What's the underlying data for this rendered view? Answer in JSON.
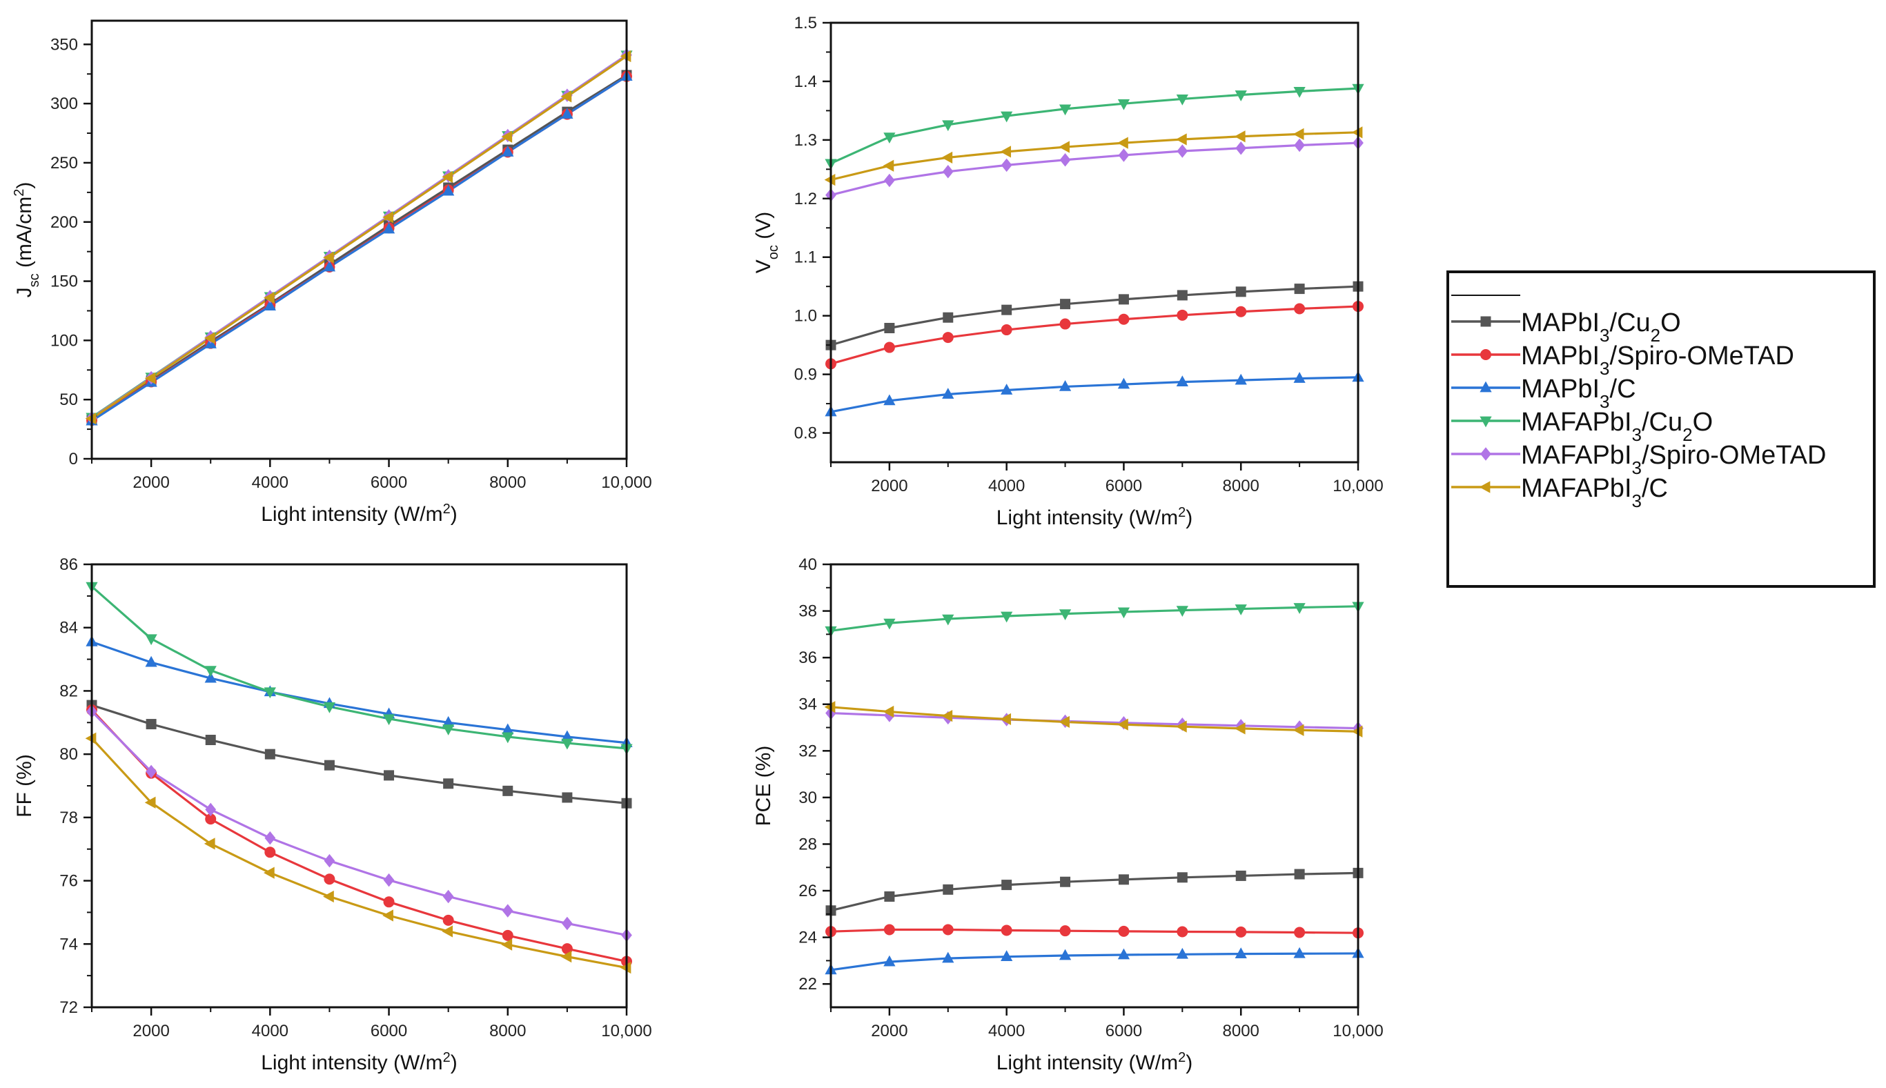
{
  "colors": {
    "MAPbI3/Cu2O": "#555555",
    "MAPbI3/Spiro-OMeTAD": "#e8373c",
    "MAPbI3/C": "#2a74d6",
    "MAFAPbI3/Cu2O": "#3cb574",
    "MAFAPbI3/Spiro-OMeTAD": "#b074e6",
    "MAFAPbI3/C": "#c99a15"
  },
  "legend": {
    "entries": [
      {
        "key": "MAPbI3/Cu2O",
        "base": "MAPbI",
        "sub": "3",
        "mid": "/Cu",
        "sub2": "2",
        "tail": "O",
        "marker": "square"
      },
      {
        "key": "MAPbI3/Spiro-OMeTAD",
        "base": "MAPbI",
        "sub": "3",
        "mid": "/Spiro-OMeTAD",
        "sub2": "",
        "tail": "",
        "marker": "circle"
      },
      {
        "key": "MAPbI3/C",
        "base": "MAPbI",
        "sub": "3",
        "mid": "/C",
        "sub2": "",
        "tail": "",
        "marker": "triangle-up"
      },
      {
        "key": "MAFAPbI3/Cu2O",
        "base": "MAFAPbI",
        "sub": "3",
        "mid": "/Cu",
        "sub2": "2",
        "tail": "O",
        "marker": "triangle-down"
      },
      {
        "key": "MAFAPbI3/Spiro-OMeTAD",
        "base": "MAFAPbI",
        "sub": "3",
        "mid": "/Spiro-OMeTAD",
        "sub2": "",
        "tail": "",
        "marker": "diamond"
      },
      {
        "key": "MAFAPbI3/C",
        "base": "MAFAPbI",
        "sub": "3",
        "mid": "/C",
        "sub2": "",
        "tail": "",
        "marker": "triangle-left"
      }
    ]
  },
  "chart_data": [
    {
      "id": "jsc",
      "type": "line",
      "xlabel": "Light intensity (W/m2)",
      "xlabel_parts": {
        "main": "Light intensity (W/m",
        "sup": "2",
        "end": ")"
      },
      "ylabel": "Jsc (mA/cm2)",
      "ylabel_parts": {
        "main": "J",
        "sub": "sc",
        "mid": " (mA/cm",
        "sup": "2",
        "end": ")"
      },
      "xlim": [
        1000,
        10000
      ],
      "ylim": [
        0,
        370
      ],
      "xticks": [
        2000,
        4000,
        6000,
        8000,
        10000
      ],
      "xtick_labels": [
        "2000",
        "4000",
        "6000",
        "8000",
        "10,000"
      ],
      "yticks": [
        0,
        50,
        100,
        150,
        200,
        250,
        300,
        350
      ],
      "ytick_labels": [
        "0",
        "50",
        "100",
        "150",
        "200",
        "250",
        "300",
        "350"
      ],
      "x": [
        1000,
        2000,
        3000,
        4000,
        5000,
        6000,
        7000,
        8000,
        9000,
        10000
      ],
      "series": [
        {
          "name": "MAPbI3/Cu2O",
          "marker": "square",
          "values": [
            33,
            66,
            99,
            131,
            164,
            197,
            229,
            261,
            293,
            324
          ]
        },
        {
          "name": "MAPbI3/Spiro-OMeTAD",
          "marker": "circle",
          "values": [
            32.5,
            65,
            97.5,
            130,
            162,
            195,
            227,
            259,
            291,
            323
          ]
        },
        {
          "name": "MAPbI3/C",
          "marker": "triangle-up",
          "values": [
            32,
            64.5,
            97,
            129,
            162,
            194,
            226,
            259,
            291,
            323
          ]
        },
        {
          "name": "MAFAPbI3/Cu2O",
          "marker": "triangle-down",
          "values": [
            35,
            69,
            103,
            137,
            171,
            205,
            239,
            273,
            307,
            341
          ]
        },
        {
          "name": "MAFAPbI3/Spiro-OMeTAD",
          "marker": "diamond",
          "values": [
            34.5,
            68.5,
            103,
            137,
            171,
            205,
            239,
            273,
            307,
            341
          ]
        },
        {
          "name": "MAFAPbI3/C",
          "marker": "triangle-left",
          "values": [
            34,
            68,
            102,
            136,
            170,
            204,
            238,
            272,
            306,
            340
          ]
        }
      ]
    },
    {
      "id": "voc",
      "type": "line",
      "xlabel": "Light intensity (W/m2)",
      "xlabel_parts": {
        "main": "Light intensity (W/m",
        "sup": "2",
        "end": ")"
      },
      "ylabel": "Voc (V)",
      "ylabel_parts": {
        "main": "V",
        "sub": "oc",
        "mid": " (V)",
        "sup": "",
        "end": ""
      },
      "xlim": [
        1000,
        10000
      ],
      "ylim": [
        0.75,
        1.5
      ],
      "xticks": [
        2000,
        4000,
        6000,
        8000,
        10000
      ],
      "xtick_labels": [
        "2000",
        "4000",
        "6000",
        "8000",
        "10,000"
      ],
      "yticks": [
        0.8,
        0.9,
        1.0,
        1.1,
        1.2,
        1.3,
        1.4,
        1.5
      ],
      "ytick_labels": [
        "0.8",
        "0.9",
        "1.0",
        "1.1",
        "1.2",
        "1.3",
        "1.4",
        "1.5"
      ],
      "x": [
        1000,
        2000,
        3000,
        4000,
        5000,
        6000,
        7000,
        8000,
        9000,
        10000
      ],
      "series": [
        {
          "name": "MAPbI3/Cu2O",
          "marker": "square",
          "values": [
            0.95,
            0.979,
            0.997,
            1.01,
            1.02,
            1.028,
            1.035,
            1.041,
            1.046,
            1.05
          ]
        },
        {
          "name": "MAPbI3/Spiro-OMeTAD",
          "marker": "circle",
          "values": [
            0.918,
            0.946,
            0.963,
            0.976,
            0.986,
            0.994,
            1.001,
            1.007,
            1.012,
            1.016
          ]
        },
        {
          "name": "MAPbI3/C",
          "marker": "triangle-up",
          "values": [
            0.836,
            0.855,
            0.866,
            0.873,
            0.879,
            0.883,
            0.887,
            0.89,
            0.893,
            0.895
          ]
        },
        {
          "name": "MAFAPbI3/Cu2O",
          "marker": "triangle-down",
          "values": [
            1.26,
            1.305,
            1.326,
            1.341,
            1.353,
            1.362,
            1.37,
            1.377,
            1.383,
            1.388
          ]
        },
        {
          "name": "MAFAPbI3/Spiro-OMeTAD",
          "marker": "diamond",
          "values": [
            1.206,
            1.231,
            1.246,
            1.257,
            1.266,
            1.274,
            1.281,
            1.286,
            1.291,
            1.295
          ]
        },
        {
          "name": "MAFAPbI3/C",
          "marker": "triangle-left",
          "values": [
            1.232,
            1.256,
            1.27,
            1.28,
            1.288,
            1.295,
            1.301,
            1.306,
            1.31,
            1.313
          ]
        }
      ]
    },
    {
      "id": "ff",
      "type": "line",
      "xlabel": "Light intensity (W/m2)",
      "xlabel_parts": {
        "main": "Light intensity (W/m",
        "sup": "2",
        "end": ")"
      },
      "ylabel": "FF (%)",
      "ylabel_parts": {
        "main": "FF (%)",
        "sub": "",
        "mid": "",
        "sup": "",
        "end": ""
      },
      "xlim": [
        1000,
        10000
      ],
      "ylim": [
        72,
        86
      ],
      "xticks": [
        2000,
        4000,
        6000,
        8000,
        10000
      ],
      "xtick_labels": [
        "2000",
        "4000",
        "6000",
        "8000",
        "10,000"
      ],
      "yticks": [
        72,
        74,
        76,
        78,
        80,
        82,
        84,
        86
      ],
      "ytick_labels": [
        "72",
        "74",
        "76",
        "78",
        "80",
        "82",
        "84",
        "86"
      ],
      "x": [
        1000,
        2000,
        3000,
        4000,
        5000,
        6000,
        7000,
        8000,
        9000,
        10000
      ],
      "series": [
        {
          "name": "MAPbI3/Cu2O",
          "marker": "square",
          "values": [
            81.55,
            80.95,
            80.45,
            80.0,
            79.65,
            79.33,
            79.07,
            78.84,
            78.63,
            78.45
          ]
        },
        {
          "name": "MAPbI3/Spiro-OMeTAD",
          "marker": "circle",
          "values": [
            81.4,
            79.4,
            77.95,
            76.9,
            76.05,
            75.33,
            74.75,
            74.27,
            73.85,
            73.45
          ]
        },
        {
          "name": "MAPbI3/C",
          "marker": "triangle-up",
          "values": [
            83.55,
            82.9,
            82.4,
            81.97,
            81.6,
            81.27,
            81.0,
            80.77,
            80.55,
            80.36
          ]
        },
        {
          "name": "MAFAPbI3/Cu2O",
          "marker": "triangle-down",
          "values": [
            85.3,
            83.65,
            82.65,
            81.97,
            81.5,
            81.12,
            80.8,
            80.55,
            80.35,
            80.18
          ]
        },
        {
          "name": "MAFAPbI3/Spiro-OMeTAD",
          "marker": "diamond",
          "values": [
            81.35,
            79.45,
            78.25,
            77.35,
            76.63,
            76.02,
            75.5,
            75.05,
            74.65,
            74.28
          ]
        },
        {
          "name": "MAFAPbI3/C",
          "marker": "triangle-left",
          "values": [
            80.5,
            78.47,
            77.17,
            76.25,
            75.5,
            74.9,
            74.4,
            73.98,
            73.6,
            73.25
          ]
        }
      ]
    },
    {
      "id": "pce",
      "type": "line",
      "xlabel": "Light intensity (W/m2)",
      "xlabel_parts": {
        "main": "Light intensity (W/m",
        "sup": "2",
        "end": ")"
      },
      "ylabel": "PCE (%)",
      "ylabel_parts": {
        "main": "PCE (%)",
        "sub": "",
        "mid": "",
        "sup": "",
        "end": ""
      },
      "xlim": [
        1000,
        10000
      ],
      "ylim": [
        21,
        40
      ],
      "xticks": [
        2000,
        4000,
        6000,
        8000,
        10000
      ],
      "xtick_labels": [
        "2000",
        "4000",
        "6000",
        "8000",
        "10,000"
      ],
      "yticks": [
        22,
        24,
        26,
        28,
        30,
        32,
        34,
        36,
        38,
        40
      ],
      "ytick_labels": [
        "22",
        "24",
        "26",
        "28",
        "30",
        "32",
        "34",
        "36",
        "38",
        "40"
      ],
      "x": [
        1000,
        2000,
        3000,
        4000,
        5000,
        6000,
        7000,
        8000,
        9000,
        10000
      ],
      "series": [
        {
          "name": "MAPbI3/Cu2O",
          "marker": "square",
          "values": [
            25.15,
            25.75,
            26.05,
            26.25,
            26.38,
            26.48,
            26.57,
            26.64,
            26.71,
            26.76
          ]
        },
        {
          "name": "MAPbI3/Spiro-OMeTAD",
          "marker": "circle",
          "values": [
            24.25,
            24.33,
            24.33,
            24.3,
            24.28,
            24.26,
            24.24,
            24.23,
            24.21,
            24.19
          ]
        },
        {
          "name": "MAPbI3/C",
          "marker": "triangle-up",
          "values": [
            22.6,
            22.95,
            23.1,
            23.17,
            23.22,
            23.25,
            23.27,
            23.29,
            23.3,
            23.31
          ]
        },
        {
          "name": "MAFAPbI3/Cu2O",
          "marker": "triangle-down",
          "values": [
            37.15,
            37.48,
            37.66,
            37.78,
            37.88,
            37.96,
            38.03,
            38.09,
            38.15,
            38.2
          ]
        },
        {
          "name": "MAFAPbI3/Spiro-OMeTAD",
          "marker": "diamond",
          "values": [
            33.62,
            33.52,
            33.42,
            33.34,
            33.27,
            33.2,
            33.14,
            33.08,
            33.02,
            32.97
          ]
        },
        {
          "name": "MAFAPbI3/C",
          "marker": "triangle-left",
          "values": [
            33.88,
            33.68,
            33.5,
            33.36,
            33.24,
            33.13,
            33.04,
            32.96,
            32.89,
            32.83
          ]
        }
      ]
    }
  ]
}
